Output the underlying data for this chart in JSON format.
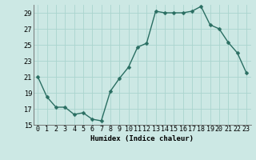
{
  "x": [
    0,
    1,
    2,
    3,
    4,
    5,
    6,
    7,
    8,
    9,
    10,
    11,
    12,
    13,
    14,
    15,
    16,
    17,
    18,
    19,
    20,
    21,
    22,
    23
  ],
  "y": [
    21,
    18.5,
    17.2,
    17.2,
    16.3,
    16.5,
    15.7,
    15.5,
    19.2,
    20.8,
    22.2,
    24.7,
    25.2,
    29.2,
    29.0,
    29.0,
    29.0,
    29.2,
    29.8,
    27.5,
    27.0,
    25.3,
    24.0,
    21.5
  ],
  "xlabel": "Humidex (Indice chaleur)",
  "bg_color": "#cce8e4",
  "grid_color": "#aad4ce",
  "line_color": "#2a6e62",
  "marker_color": "#2a6e62",
  "xlim": [
    -0.5,
    23.5
  ],
  "ylim": [
    15,
    30
  ],
  "yticks": [
    15,
    17,
    19,
    21,
    23,
    25,
    27,
    29
  ],
  "xticks": [
    0,
    1,
    2,
    3,
    4,
    5,
    6,
    7,
    8,
    9,
    10,
    11,
    12,
    13,
    14,
    15,
    16,
    17,
    18,
    19,
    20,
    21,
    22,
    23
  ],
  "xlabel_fontsize": 6.5,
  "tick_fontsize": 6,
  "line_width": 1.0,
  "marker_size": 2.5
}
